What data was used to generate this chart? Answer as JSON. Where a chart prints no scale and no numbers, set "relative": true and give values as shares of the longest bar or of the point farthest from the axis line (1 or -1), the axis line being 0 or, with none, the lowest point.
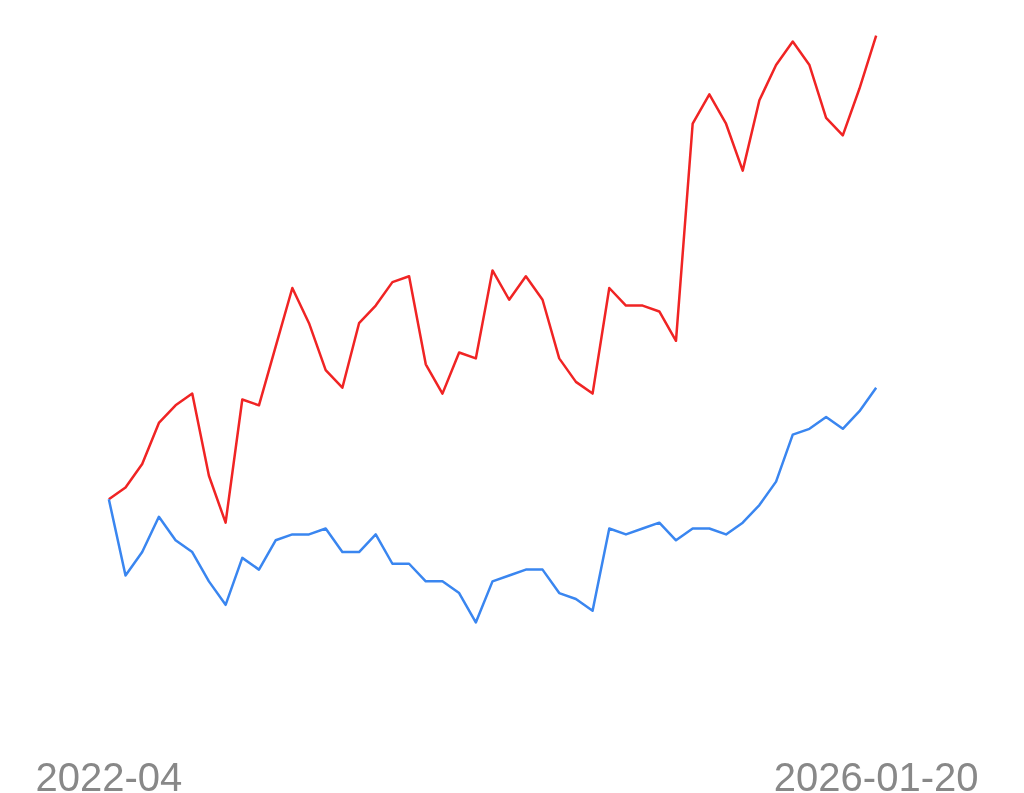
{
  "chart_data": {
    "type": "line",
    "relative": true,
    "categories": [
      "2022-04",
      null,
      null,
      null,
      null,
      null,
      null,
      null,
      null,
      null,
      null,
      null,
      null,
      null,
      null,
      null,
      null,
      null,
      null,
      null,
      null,
      null,
      null,
      null,
      null,
      null,
      null,
      null,
      null,
      null,
      null,
      null,
      null,
      null,
      null,
      null,
      null,
      null,
      null,
      null,
      null,
      null,
      null,
      null,
      null,
      null,
      "2026-01-20"
    ],
    "series": [
      {
        "color": "#f02424",
        "values": [
          0.21,
          0.23,
          0.27,
          0.34,
          0.37,
          0.39,
          0.25,
          0.17,
          0.38,
          0.37,
          0.47,
          0.57,
          0.51,
          0.43,
          0.4,
          0.51,
          0.54,
          0.58,
          0.59,
          0.44,
          0.39,
          0.46,
          0.45,
          0.6,
          0.55,
          0.59,
          0.55,
          0.45,
          0.41,
          0.39,
          0.57,
          0.54,
          0.54,
          0.53,
          0.48,
          0.85,
          0.9,
          0.85,
          0.77,
          0.89,
          0.95,
          0.99,
          0.95,
          0.86,
          0.83,
          0.91,
          1
        ]
      },
      {
        "type": "line",
        "color": "#3a86f0",
        "values": [
          0.21,
          0.08,
          0.12,
          0.18,
          0.14,
          0.12,
          0.07,
          0.03,
          0.11,
          0.09,
          0.14,
          0.15,
          0.15,
          0.16,
          0.12,
          0.12,
          0.15,
          0.1,
          0.1,
          0.07,
          0.07,
          0.05,
          0,
          0.07,
          0.08,
          0.09,
          0.09,
          0.05,
          0.04,
          0.02,
          0.16,
          0.15,
          0.16,
          0.17,
          0.14,
          0.16,
          0.16,
          0.15,
          0.17,
          0.2,
          0.24,
          0.32,
          0.33,
          0.35,
          0.33,
          0.36,
          0.4
        ]
      }
    ]
  }
}
